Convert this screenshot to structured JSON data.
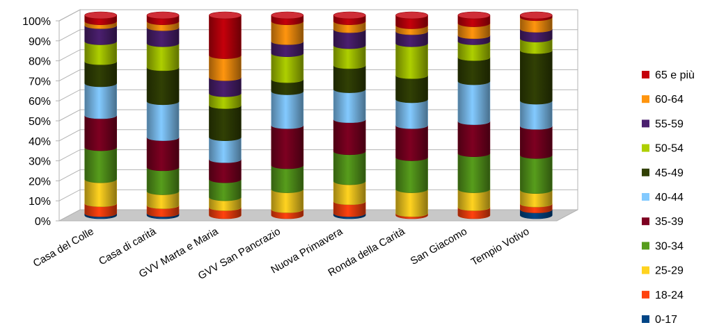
{
  "chart_data": {
    "type": "bar",
    "stacked": true,
    "percent": true,
    "three_d": true,
    "title": "",
    "xlabel": "",
    "ylabel": "",
    "ylim": [
      0,
      100
    ],
    "yticks": [
      "0%",
      "10%",
      "20%",
      "30%",
      "40%",
      "50%",
      "60%",
      "70%",
      "80%",
      "90%",
      "100%"
    ],
    "grid": true,
    "legend_position": "right",
    "categories": [
      "Casa del Colle",
      "Casa di carità",
      "GVV Marta e Maria",
      "GVV San Pancrazio",
      "Nuova Primavera",
      "Ronda della Carità",
      "San Giacomo",
      "Tempio Votivo"
    ],
    "series": [
      {
        "name": "0-17",
        "color": "#004586",
        "values": [
          1,
          1,
          0,
          0,
          1,
          0,
          0,
          3
        ]
      },
      {
        "name": "18-24",
        "color": "#ff420e",
        "values": [
          5,
          4,
          4,
          3,
          6,
          1,
          4,
          3
        ]
      },
      {
        "name": "25-29",
        "color": "#ffd320",
        "values": [
          12,
          7,
          5,
          10,
          10,
          12,
          9,
          7
        ]
      },
      {
        "name": "30-34",
        "color": "#579d1c",
        "values": [
          16,
          12,
          9,
          12,
          15,
          16,
          18,
          18
        ]
      },
      {
        "name": "35-39",
        "color": "#7e0021",
        "values": [
          16,
          15,
          10,
          20,
          16,
          16,
          16,
          15
        ]
      },
      {
        "name": "40-44",
        "color": "#83caff",
        "values": [
          16,
          18,
          11,
          17,
          15,
          13,
          20,
          13
        ]
      },
      {
        "name": "45-49",
        "color": "#314004",
        "values": [
          11,
          17,
          16,
          6,
          12,
          12,
          12,
          26
        ]
      },
      {
        "name": "50-54",
        "color": "#aecf00",
        "values": [
          10,
          12,
          6,
          13,
          10,
          16,
          8,
          6
        ]
      },
      {
        "name": "55-59",
        "color": "#4b1f6f",
        "values": [
          8,
          8,
          8,
          6,
          8,
          6,
          3,
          5
        ]
      },
      {
        "name": "60-64",
        "color": "#ff950e",
        "values": [
          2,
          3,
          11,
          10,
          4,
          3,
          6,
          6
        ]
      },
      {
        "name": "65 e più",
        "color": "#c5000b",
        "values": [
          3,
          3,
          20,
          3,
          3,
          5,
          4,
          1
        ]
      }
    ]
  }
}
